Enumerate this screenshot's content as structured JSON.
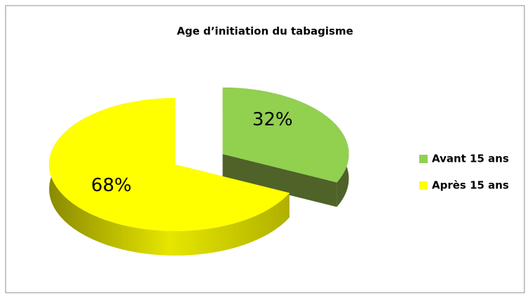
{
  "chart_data": {
    "type": "pie",
    "title": "Age d’initiation du tabagisme",
    "categories": [
      "Avant 15 ans",
      "Après 15 ans"
    ],
    "values": [
      32,
      68
    ],
    "value_labels": [
      "32%",
      "68%"
    ],
    "colors": [
      "#92d050",
      "#ffff00"
    ],
    "legend": "right"
  }
}
